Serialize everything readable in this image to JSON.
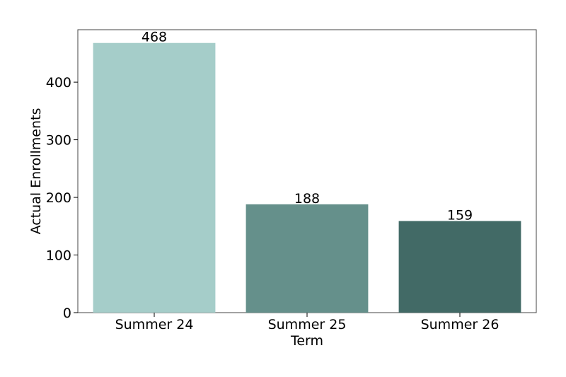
{
  "chart_data": {
    "type": "bar",
    "categories": [
      "Summer 24",
      "Summer 25",
      "Summer 26"
    ],
    "values": [
      468,
      188,
      159
    ],
    "colors": [
      "#a5cdc9",
      "#65908b",
      "#426a66"
    ],
    "xlabel": "Term",
    "ylabel": "Actual Enrollments",
    "ylim": [
      0,
      491
    ],
    "yticks": [
      0,
      100,
      200,
      300,
      400
    ],
    "grid": false
  }
}
